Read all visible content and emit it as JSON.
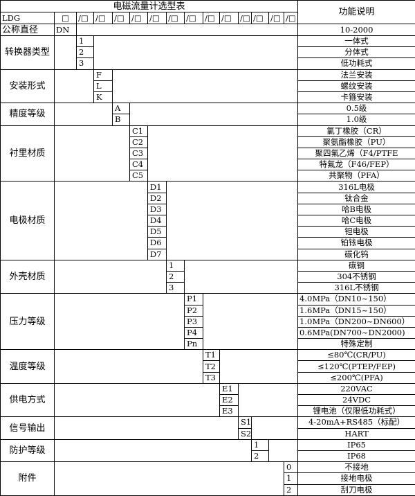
{
  "title": "电磁流量计选型表",
  "function_header": "功能说明",
  "model_row": {
    "prefix": "LDG",
    "slots": [
      "□",
      "/□",
      "/□",
      "/□",
      "/□",
      "/□",
      "/□",
      "/□",
      "/□",
      "/□",
      "/□",
      "/□",
      "/□",
      "/□"
    ]
  },
  "nominal": {
    "label": "公称直径",
    "code": "DN",
    "function": "10-2000"
  },
  "groups": [
    {
      "label": "转换器类型",
      "col": 2,
      "items": [
        {
          "code": "1",
          "fn": "一体式"
        },
        {
          "code": "2",
          "fn": "分体式"
        },
        {
          "code": "3",
          "fn": "低功耗式"
        }
      ]
    },
    {
      "label": "安装形式",
      "col": 3,
      "items": [
        {
          "code": "F",
          "fn": "法兰安装"
        },
        {
          "code": "L",
          "fn": "螺纹安装"
        },
        {
          "code": "K",
          "fn": "卡箍安装"
        }
      ]
    },
    {
      "label": "精度等级",
      "col": 4,
      "items": [
        {
          "code": "A",
          "fn": "0.5级"
        },
        {
          "code": "B",
          "fn": "1.0级"
        }
      ]
    },
    {
      "label": "衬里材质",
      "col": 5,
      "items": [
        {
          "code": "C1",
          "fn": "氯丁橡胶（CR）"
        },
        {
          "code": "C2",
          "fn": "聚氨酯橡胶（PU）"
        },
        {
          "code": "C3",
          "fn": "聚四氟乙烯（F4/PTFE"
        },
        {
          "code": "C4",
          "fn": "特氟龙（F46/FEP）"
        },
        {
          "code": "C5",
          "fn": "共聚物（PFA）"
        }
      ]
    },
    {
      "label": "电极材质",
      "col": 6,
      "items": [
        {
          "code": "D1",
          "fn": "316L电极"
        },
        {
          "code": "D2",
          "fn": "钛合金"
        },
        {
          "code": "D3",
          "fn": "哈B电极"
        },
        {
          "code": "D4",
          "fn": "哈C电极"
        },
        {
          "code": "D5",
          "fn": "钽电极"
        },
        {
          "code": "D6",
          "fn": "铂铱电极"
        },
        {
          "code": "D7",
          "fn": "碳化钨"
        }
      ]
    },
    {
      "label": "外壳材质",
      "col": 7,
      "items": [
        {
          "code": "1",
          "fn": "碳钢"
        },
        {
          "code": "2",
          "fn": "304不锈钢"
        },
        {
          "code": "3",
          "fn": "316L不锈钢"
        }
      ]
    },
    {
      "label": "压力等级",
      "col": 8,
      "align": "left",
      "items": [
        {
          "code": "P1",
          "fn": "4.0MPa（DN10~150）"
        },
        {
          "code": "P2",
          "fn": "1.6MPa（DN15~150）"
        },
        {
          "code": "P3",
          "fn": "1.0MPa（DN200~DN600）"
        },
        {
          "code": "P4",
          "fn": "0.6MPa(DN700~DN2000)"
        },
        {
          "code": "Pn",
          "fn": "特殊定制",
          "center": true
        }
      ]
    },
    {
      "label": "温度等级",
      "col": 9,
      "items": [
        {
          "code": "T1",
          "fn": "≤80℃(CR/PU)"
        },
        {
          "code": "T2",
          "fn": "≤120℃(PTEP/FEP)"
        },
        {
          "code": "T3",
          "fn": "≤200℃(PFA)"
        }
      ]
    },
    {
      "label": "供电方式",
      "col": 10,
      "items": [
        {
          "code": "E1",
          "fn": "220VAC"
        },
        {
          "code": "E2",
          "fn": "24VDC"
        },
        {
          "code": "E3",
          "fn": "锂电池（仅限低功耗式）"
        }
      ]
    },
    {
      "label": "信号输出",
      "col": 11,
      "items": [
        {
          "code": "S1",
          "fn": "4-20mA+RS485（标配）"
        },
        {
          "code": "S2",
          "fn": "HART"
        }
      ]
    },
    {
      "label": "防护等级",
      "col": 12,
      "items": [
        {
          "code": "1",
          "fn": "IP65"
        },
        {
          "code": "2",
          "fn": "IP68"
        }
      ]
    },
    {
      "label": "附件",
      "col": 14,
      "items": [
        {
          "code": "0",
          "fn": "不接地"
        },
        {
          "code": "1",
          "fn": "接地电极"
        },
        {
          "code": "2",
          "fn": "刮刀电极"
        }
      ]
    }
  ]
}
